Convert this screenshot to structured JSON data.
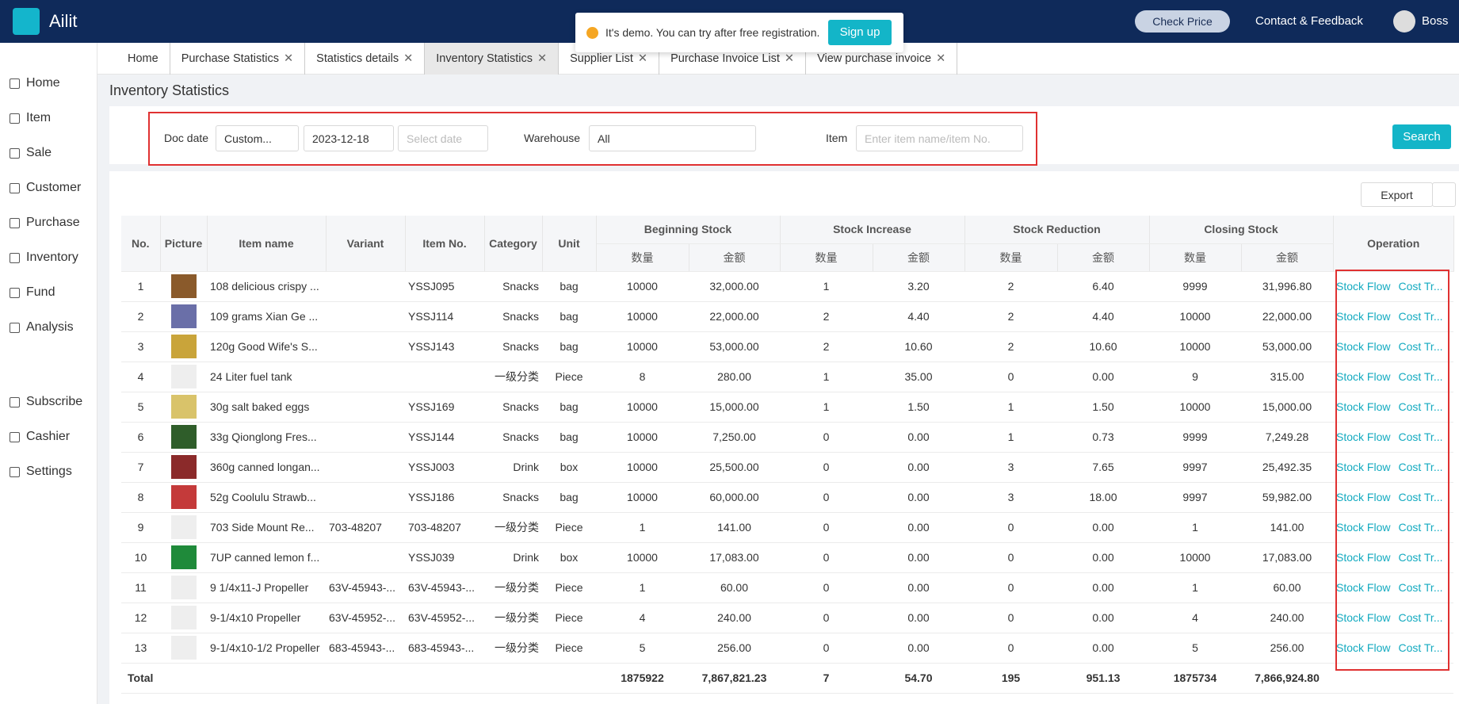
{
  "header": {
    "brand": "Ailit",
    "check_price": "Check Price",
    "contact": "Contact & Feedback",
    "user": "Boss"
  },
  "banner": {
    "text": "It's demo. You can try after free registration.",
    "signup": "Sign up"
  },
  "sidebar": {
    "items": [
      "Home",
      "Item",
      "Sale",
      "Customer",
      "Purchase",
      "Inventory",
      "Fund",
      "Analysis"
    ],
    "items2": [
      "Subscribe",
      "Cashier",
      "Settings"
    ]
  },
  "tabs": [
    "Home",
    "Purchase Statistics",
    "Statistics details",
    "Inventory Statistics",
    "Supplier List",
    "Purchase Invoice List",
    "View purchase invoice"
  ],
  "page_title": "Inventory Statistics",
  "filters": {
    "doc_date_label": "Doc date",
    "doc_date_mode": "Custom...",
    "start_date": "2023-12-18",
    "end_date_placeholder": "Select date",
    "warehouse_label": "Warehouse",
    "warehouse_value": "All",
    "item_label": "Item",
    "item_placeholder": "Enter item name/item No.",
    "search": "Search"
  },
  "export": "Export",
  "table": {
    "columns": [
      "No.",
      "Picture",
      "Item name",
      "Variant",
      "Item No.",
      "Category",
      "Unit"
    ],
    "groups": [
      "Beginning Stock",
      "Stock Increase",
      "Stock Reduction",
      "Closing Stock"
    ],
    "sub": [
      "数量",
      "金额"
    ],
    "operation_header": "Operation",
    "operations": [
      "Stock Flow",
      "Cost Tr..."
    ],
    "rows": [
      [
        "1",
        "108 delicious crispy ...",
        null,
        "YSSJ095",
        "Snacks",
        "bag",
        "10000",
        "32,000.00",
        "1",
        "3.20",
        "2",
        "6.40",
        "9999",
        "31,996.80"
      ],
      [
        "2",
        "109 grams Xian Ge ...",
        null,
        "YSSJ114",
        "Snacks",
        "bag",
        "10000",
        "22,000.00",
        "2",
        "4.40",
        "2",
        "4.40",
        "10000",
        "22,000.00"
      ],
      [
        "3",
        "120g Good Wife's S...",
        null,
        "YSSJ143",
        "Snacks",
        "bag",
        "10000",
        "53,000.00",
        "2",
        "10.60",
        "2",
        "10.60",
        "10000",
        "53,000.00"
      ],
      [
        "4",
        "24 Liter fuel tank",
        null,
        null,
        "一级分类",
        "Piece",
        "8",
        "280.00",
        "1",
        "35.00",
        "0",
        "0.00",
        "9",
        "315.00"
      ],
      [
        "5",
        "30g salt baked eggs",
        null,
        "YSSJ169",
        "Snacks",
        "bag",
        "10000",
        "15,000.00",
        "1",
        "1.50",
        "1",
        "1.50",
        "10000",
        "15,000.00"
      ],
      [
        "6",
        "33g Qionglong Fres...",
        null,
        "YSSJ144",
        "Snacks",
        "bag",
        "10000",
        "7,250.00",
        "0",
        "0.00",
        "1",
        "0.73",
        "9999",
        "7,249.28"
      ],
      [
        "7",
        "360g canned longan...",
        null,
        "YSSJ003",
        "Drink",
        "box",
        "10000",
        "25,500.00",
        "0",
        "0.00",
        "3",
        "7.65",
        "9997",
        "25,492.35"
      ],
      [
        "8",
        "52g Coolulu Strawb...",
        null,
        "YSSJ186",
        "Snacks",
        "bag",
        "10000",
        "60,000.00",
        "0",
        "0.00",
        "3",
        "18.00",
        "9997",
        "59,982.00"
      ],
      [
        "9",
        "703 Side Mount Re...",
        "703-48207",
        "703-48207",
        "一级分类",
        "Piece",
        "1",
        "141.00",
        "0",
        "0.00",
        "0",
        "0.00",
        "1",
        "141.00"
      ],
      [
        "10",
        "7UP canned lemon f...",
        null,
        "YSSJ039",
        "Drink",
        "box",
        "10000",
        "17,083.00",
        "0",
        "0.00",
        "0",
        "0.00",
        "10000",
        "17,083.00"
      ],
      [
        "11",
        "9 1/4x11-J Propeller",
        "63V-45943-...",
        "63V-45943-...",
        "一级分类",
        "Piece",
        "1",
        "60.00",
        "0",
        "0.00",
        "0",
        "0.00",
        "1",
        "60.00"
      ],
      [
        "12",
        "9-1/4x10 Propeller",
        "63V-45952-...",
        "63V-45952-...",
        "一级分类",
        "Piece",
        "4",
        "240.00",
        "0",
        "0.00",
        "0",
        "0.00",
        "4",
        "240.00"
      ],
      [
        "13",
        "9-1/4x10-1/2 Propeller",
        "683-45943-...",
        "683-45943-...",
        "一级分类",
        "Piece",
        "5",
        "256.00",
        "0",
        "0.00",
        "0",
        "0.00",
        "5",
        "256.00"
      ]
    ],
    "total_label": "Total",
    "totals": [
      "1875922",
      "7,867,821.23",
      "7",
      "54.70",
      "195",
      "951.13",
      "1875734",
      "7,866,924.80"
    ]
  }
}
